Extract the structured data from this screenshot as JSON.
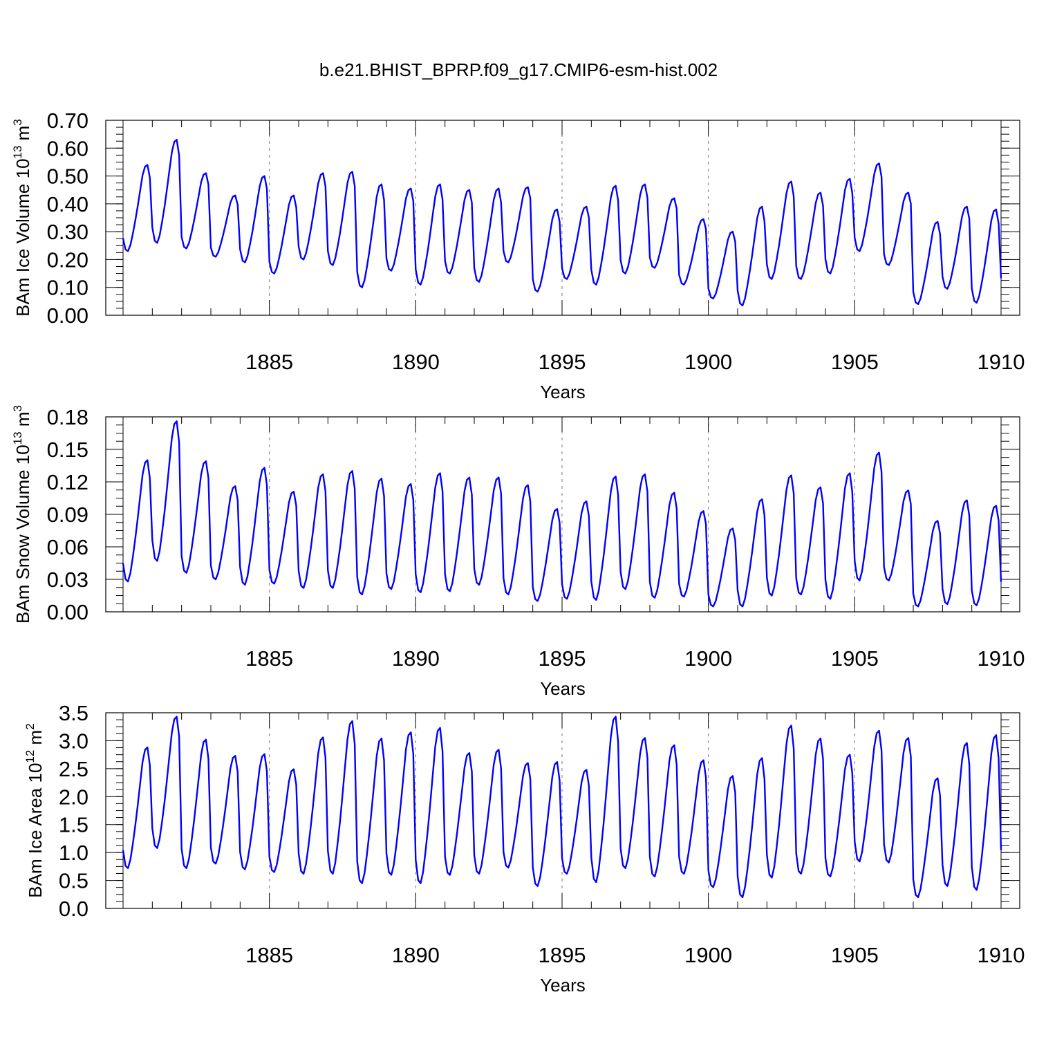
{
  "figure_title": "b.e21.BHIST_BPRP.f09_g17.CMIP6-esm-hist.002",
  "colors": {
    "series": "#0000ff",
    "grid": "#777777",
    "axis": "#000000"
  },
  "chart_data": [
    {
      "type": "line",
      "ylabel_main": "BAm Ice Volume 10",
      "ylabel_exp": "13",
      "ylabel_unit": " m",
      "ylabel_unit_exp": "3",
      "xlabel": "Years",
      "xlim": [
        1880,
        1910
      ],
      "ylim": [
        0.0,
        0.7
      ],
      "yticks": [
        0.0,
        0.1,
        0.2,
        0.3,
        0.4,
        0.5,
        0.6,
        0.7
      ],
      "ytick_labels": [
        "0.00",
        "0.10",
        "0.20",
        "0.30",
        "0.40",
        "0.50",
        "0.60",
        "0.70"
      ],
      "yminor": 0.025,
      "xticks": [
        1885,
        1890,
        1895,
        1900,
        1905,
        1910
      ],
      "xtick_labels": [
        "1885",
        "1890",
        "1895",
        "1900",
        "1905",
        "1910"
      ],
      "grid_x": [
        1885,
        1890,
        1895,
        1900,
        1905
      ],
      "series": [
        {
          "name": "BAm Ice Volume",
          "monthly_cycle": true,
          "annual_min": [
            0.23,
            0.26,
            0.24,
            0.21,
            0.19,
            0.15,
            0.2,
            0.18,
            0.1,
            0.16,
            0.11,
            0.15,
            0.12,
            0.19,
            0.085,
            0.13,
            0.11,
            0.15,
            0.17,
            0.11,
            0.06,
            0.035,
            0.13,
            0.13,
            0.15,
            0.23,
            0.18,
            0.04,
            0.095,
            0.045
          ],
          "annual_max": [
            0.54,
            0.63,
            0.51,
            0.43,
            0.5,
            0.43,
            0.51,
            0.515,
            0.47,
            0.455,
            0.47,
            0.45,
            0.455,
            0.46,
            0.38,
            0.39,
            0.465,
            0.47,
            0.42,
            0.345,
            0.3,
            0.39,
            0.48,
            0.44,
            0.49,
            0.545,
            0.44,
            0.335,
            0.39,
            0.38
          ]
        }
      ]
    },
    {
      "type": "line",
      "ylabel_main": "BAm Snow Volume 10",
      "ylabel_exp": "13",
      "ylabel_unit": " m",
      "ylabel_unit_exp": "3",
      "xlabel": "Years",
      "xlim": [
        1880,
        1910
      ],
      "ylim": [
        0.0,
        0.18
      ],
      "yticks": [
        0.0,
        0.03,
        0.06,
        0.09,
        0.12,
        0.15,
        0.18
      ],
      "ytick_labels": [
        "0.00",
        "0.03",
        "0.06",
        "0.09",
        "0.12",
        "0.15",
        "0.18"
      ],
      "yminor": 0.0075,
      "xticks": [
        1885,
        1890,
        1895,
        1900,
        1905,
        1910
      ],
      "xtick_labels": [
        "1885",
        "1890",
        "1895",
        "1900",
        "1905",
        "1910"
      ],
      "grid_x": [
        1885,
        1890,
        1895,
        1900,
        1905
      ],
      "series": [
        {
          "name": "BAm Snow Volume",
          "monthly_cycle": true,
          "annual_min": [
            0.028,
            0.047,
            0.036,
            0.03,
            0.025,
            0.026,
            0.022,
            0.022,
            0.016,
            0.021,
            0.018,
            0.019,
            0.025,
            0.016,
            0.01,
            0.012,
            0.011,
            0.021,
            0.013,
            0.014,
            0.005,
            0.005,
            0.015,
            0.016,
            0.012,
            0.029,
            0.029,
            0.005,
            0.007,
            0.006
          ],
          "annual_max": [
            0.14,
            0.176,
            0.139,
            0.116,
            0.133,
            0.111,
            0.127,
            0.13,
            0.123,
            0.118,
            0.128,
            0.124,
            0.124,
            0.117,
            0.095,
            0.102,
            0.125,
            0.127,
            0.11,
            0.093,
            0.077,
            0.104,
            0.126,
            0.115,
            0.128,
            0.147,
            0.112,
            0.084,
            0.103,
            0.098
          ]
        }
      ]
    },
    {
      "type": "line",
      "ylabel_main": "BAm Ice Area 10",
      "ylabel_exp": "12",
      "ylabel_unit": " m",
      "ylabel_unit_exp": "2",
      "xlabel": "Years",
      "xlim": [
        1880,
        1910
      ],
      "ylim": [
        0.0,
        3.5
      ],
      "yticks": [
        0.0,
        0.5,
        1.0,
        1.5,
        2.0,
        2.5,
        3.0,
        3.5
      ],
      "ytick_labels": [
        "0.0",
        "0.5",
        "1.0",
        "1.5",
        "2.0",
        "2.5",
        "3.0",
        "3.5"
      ],
      "yminor": 0.125,
      "xticks": [
        1885,
        1890,
        1895,
        1900,
        1905,
        1910
      ],
      "xtick_labels": [
        "1885",
        "1890",
        "1895",
        "1900",
        "1905",
        "1910"
      ],
      "grid_x": [
        1885,
        1890,
        1895,
        1900,
        1905
      ],
      "series": [
        {
          "name": "BAm Ice Area",
          "monthly_cycle": true,
          "annual_min": [
            0.72,
            1.08,
            0.72,
            0.8,
            0.7,
            0.65,
            0.62,
            0.62,
            0.45,
            0.6,
            0.45,
            0.6,
            0.62,
            0.73,
            0.4,
            0.62,
            0.47,
            0.72,
            0.57,
            0.62,
            0.38,
            0.2,
            0.55,
            0.62,
            0.57,
            0.84,
            0.82,
            0.2,
            0.4,
            0.33
          ],
          "annual_max": [
            2.88,
            3.43,
            3.02,
            2.73,
            2.76,
            2.49,
            3.06,
            3.35,
            3.04,
            3.15,
            3.23,
            2.78,
            2.84,
            2.6,
            2.62,
            2.48,
            3.43,
            3.05,
            2.92,
            2.65,
            2.37,
            2.69,
            3.27,
            3.04,
            2.75,
            3.18,
            3.05,
            2.33,
            2.96,
            3.1
          ]
        }
      ]
    }
  ]
}
